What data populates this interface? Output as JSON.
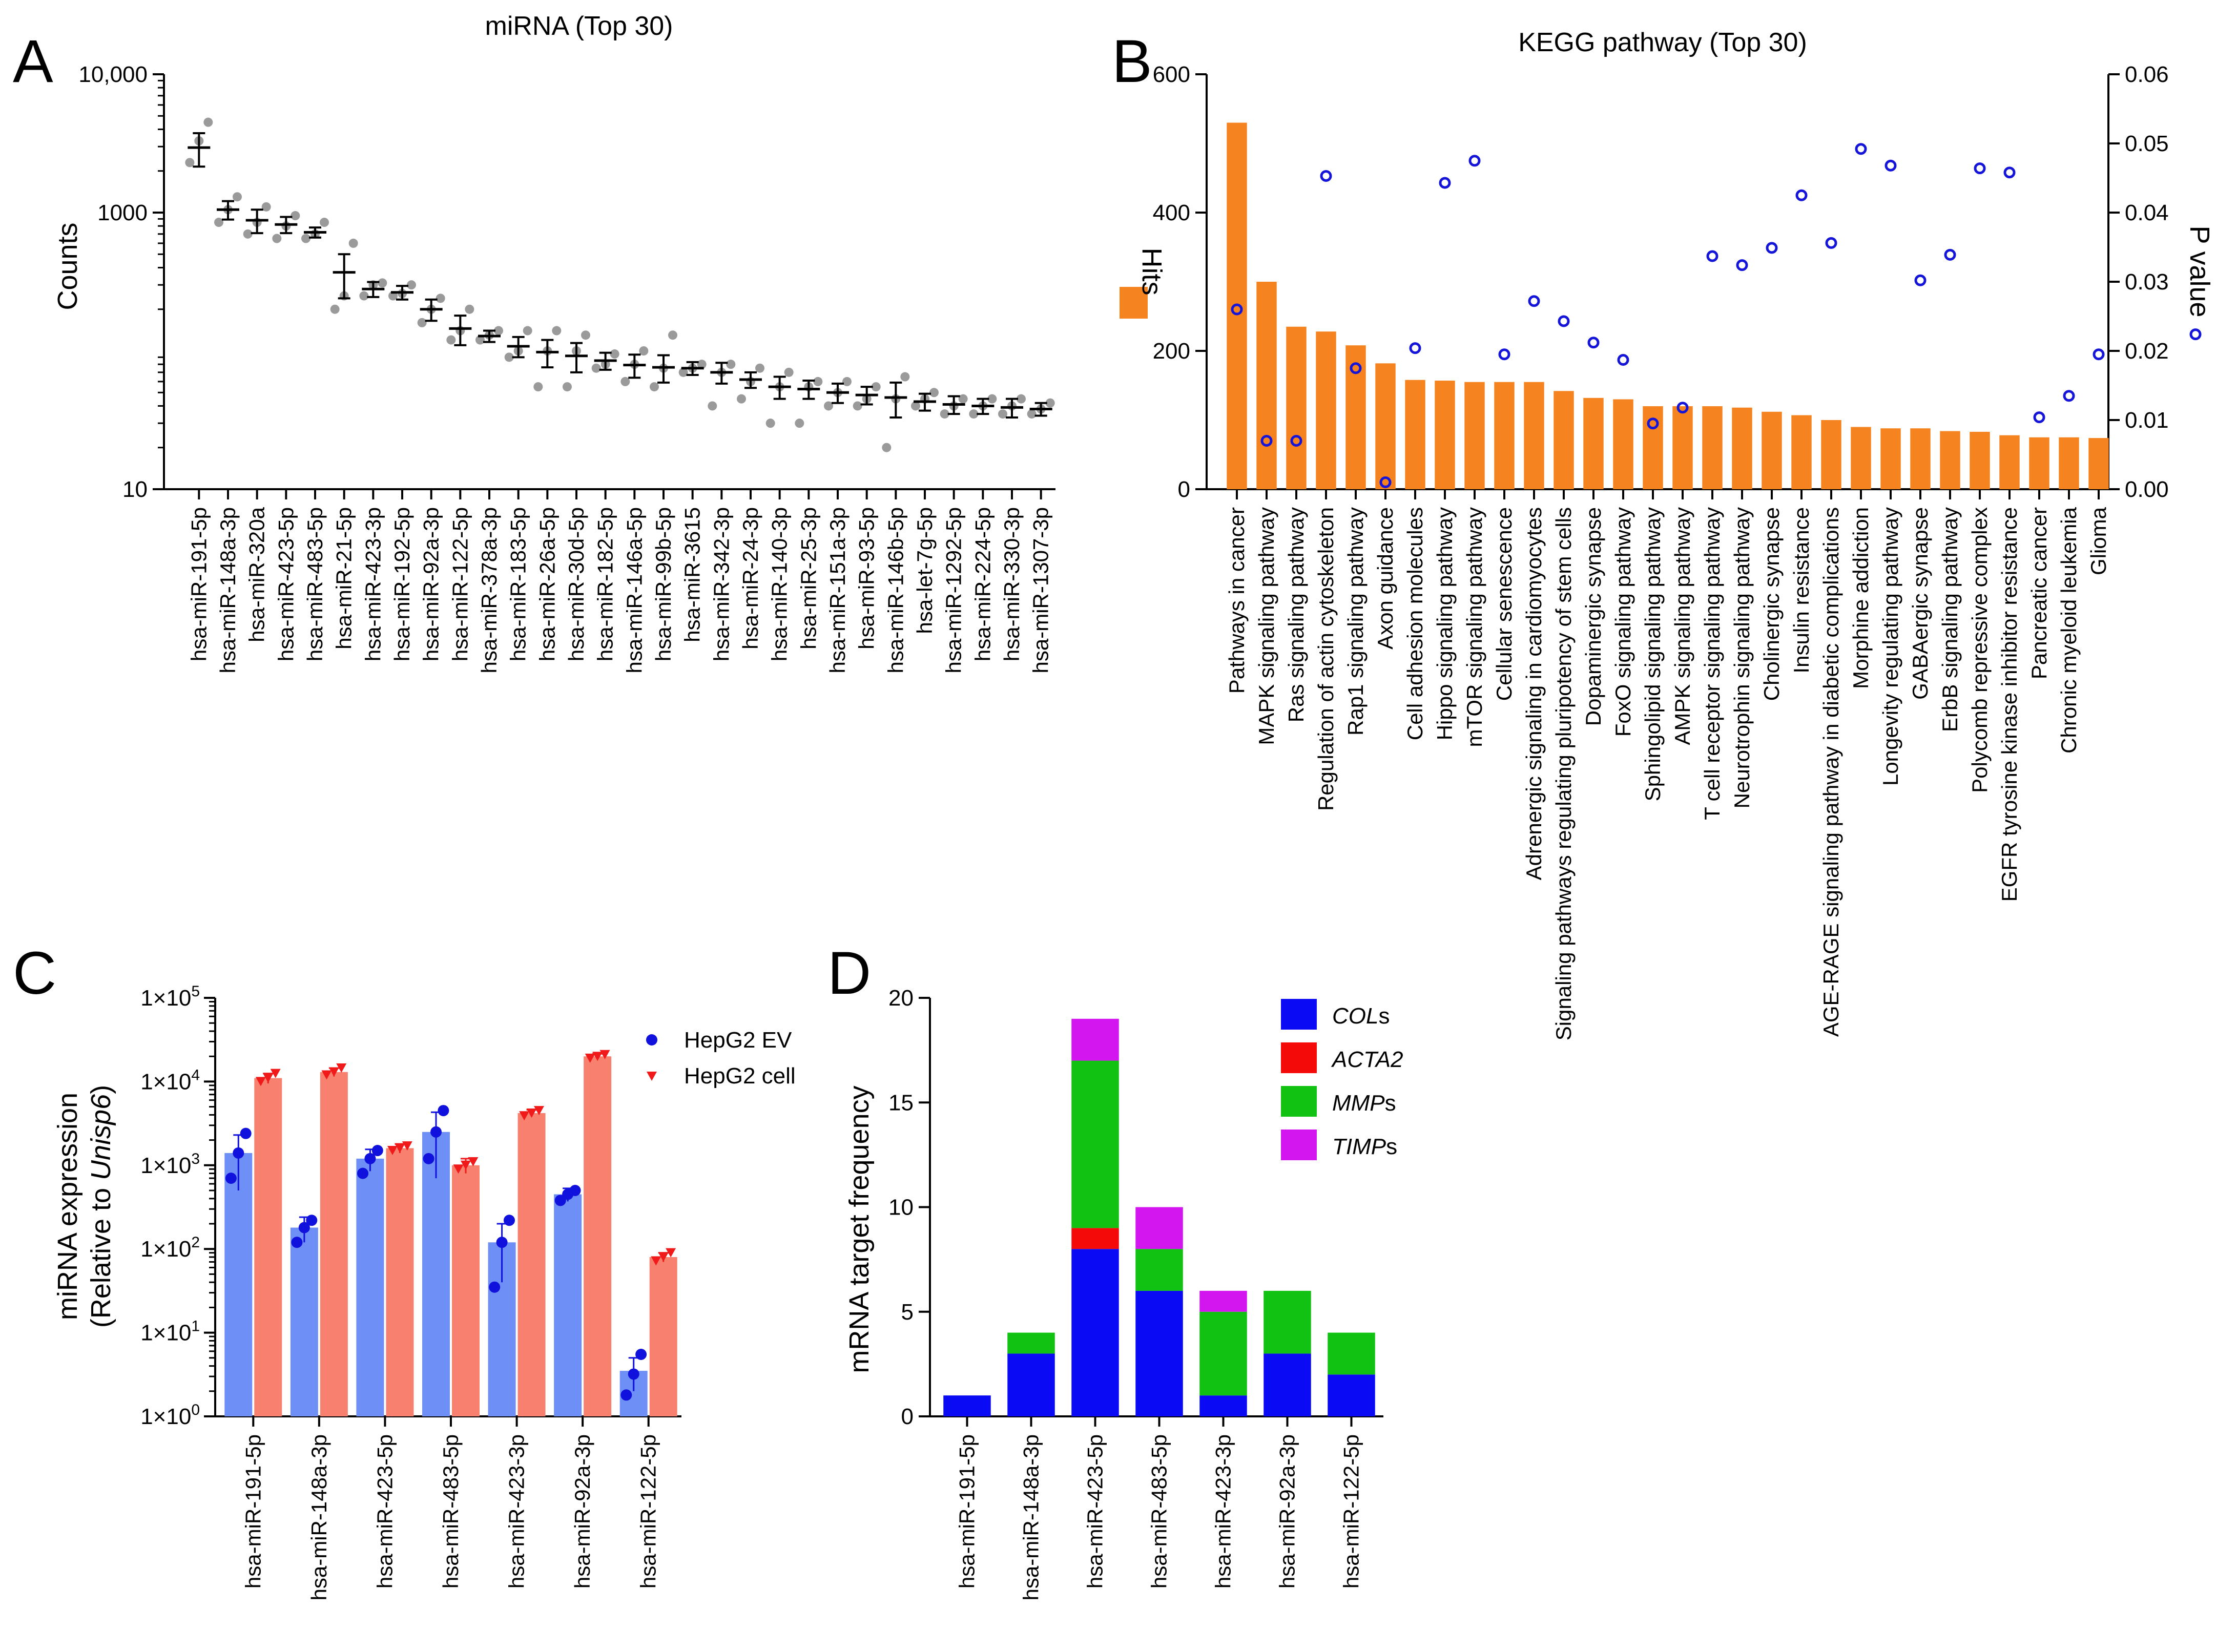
{
  "chart_data": [
    {
      "panel": "A",
      "type": "scatter",
      "title": "miRNA (Top 30)",
      "xlabel": "",
      "ylabel": "Counts",
      "yscale": "log",
      "ylim": [
        10,
        10000
      ],
      "yticks": [
        10,
        1000,
        10000
      ],
      "ytick_labels": [
        "10",
        "1000",
        "10,000"
      ],
      "categories": [
        "hsa-miR-191-5p",
        "hsa-miR-148a-3p",
        "hsa-miR-320a",
        "hsa-miR-423-5p",
        "hsa-miR-483-5p",
        "hsa-miR-21-5p",
        "hsa-miR-423-3p",
        "hsa-miR-192-5p",
        "hsa-miR-92a-3p",
        "hsa-miR-122-5p",
        "hsa-miR-378a-3p",
        "hsa-miR-183-5p",
        "hsa-miR-26a-5p",
        "hsa-miR-30d-5p",
        "hsa-miR-182-5p",
        "hsa-miR-146a-5p",
        "hsa-miR-99b-5p",
        "hsa-miR-3615",
        "hsa-miR-342-3p",
        "hsa-miR-24-3p",
        "hsa-miR-140-3p",
        "hsa-miR-25-3p",
        "hsa-miR-151a-3p",
        "hsa-miR-93-5p",
        "hsa-miR-146b-5p",
        "hsa-let-7g-5p",
        "hsa-miR-1292-5p",
        "hsa-miR-224-5p",
        "hsa-miR-330-3p",
        "hsa-miR-1307-3p"
      ],
      "means": [
        2950,
        1050,
        880,
        820,
        720,
        370,
        280,
        265,
        200,
        145,
        128,
        108,
        98,
        92,
        85,
        79,
        76,
        75,
        70,
        62,
        55,
        53,
        50,
        48,
        46,
        43,
        41,
        40,
        39,
        38
      ],
      "errors": [
        800,
        160,
        170,
        110,
        60,
        130,
        35,
        30,
        35,
        35,
        12,
        18,
        22,
        22,
        12,
        15,
        17,
        8,
        12,
        8,
        10,
        8,
        8,
        7,
        13,
        6,
        6,
        5,
        6,
        4
      ],
      "points": [
        [
          2300,
          3300,
          4500
        ],
        [
          850,
          1050,
          1300
        ],
        [
          700,
          850,
          1100
        ],
        [
          650,
          800,
          950
        ],
        [
          650,
          700,
          850
        ],
        [
          200,
          250,
          600
        ],
        [
          250,
          300,
          310
        ],
        [
          250,
          260,
          300
        ],
        [
          160,
          200,
          240
        ],
        [
          120,
          140,
          200
        ],
        [
          120,
          130,
          140
        ],
        [
          90,
          100,
          140
        ],
        [
          55,
          100,
          140
        ],
        [
          55,
          100,
          130
        ],
        [
          75,
          80,
          95
        ],
        [
          60,
          80,
          100
        ],
        [
          55,
          75,
          130
        ],
        [
          70,
          75,
          80
        ],
        [
          40,
          70,
          80
        ],
        [
          45,
          60,
          75
        ],
        [
          30,
          55,
          70
        ],
        [
          30,
          55,
          60
        ],
        [
          40,
          50,
          60
        ],
        [
          40,
          45,
          55
        ],
        [
          20,
          45,
          65
        ],
        [
          40,
          45,
          50
        ],
        [
          35,
          40,
          45
        ],
        [
          35,
          40,
          45
        ],
        [
          35,
          40,
          45
        ],
        [
          35,
          38,
          42
        ]
      ]
    },
    {
      "panel": "B",
      "type": "bar",
      "title": "KEGG pathway (Top 30)",
      "xlabel": "",
      "ylabel": "Hits",
      "ylabel_right": "P value",
      "ylim": [
        0,
        600
      ],
      "yticks": [
        0,
        200,
        400,
        600
      ],
      "ylim_right": [
        0,
        0.06
      ],
      "yticks_right": [
        "0.00",
        "0.01",
        "0.02",
        "0.03",
        "0.04",
        "0.05",
        "0.06"
      ],
      "bar_color": "#f5831f",
      "point_color": "#1515d9",
      "categories": [
        "Pathways in cancer",
        "MAPK signaling pathway",
        "Ras signaling pathway",
        "Regulation of actin cytoskeleton",
        "Rap1 signaling pathway",
        "Axon guidance",
        "Cell adhesion molecules",
        "Hippo signaling pathway",
        "mTOR signaling pathway",
        "Cellular senescence",
        "Adrenergic signaling in cardiomyocytes",
        "Signaling pathways regulating pluripotency of stem cells",
        "Dopaminergic synapse",
        "FoxO signaling pathway",
        "Sphingolipid signaling pathway",
        "AMPK signaling pathway",
        "T cell receptor signaling pathway",
        "Neurotrophin signaling pathway",
        "Cholinergic synapse",
        "Insulin resistance",
        "AGE-RAGE signaling pathway in diabetic complications",
        "Morphine addiction",
        "Longevity regulating pathway",
        "GABAergic synapse",
        "ErbB signaling pathway",
        "Polycomb repressive complex",
        "EGFR tyrosine kinase inhibitor resistance",
        "Pancreatic cancer",
        "Chronic myeloid leukemia",
        "Glioma"
      ],
      "series": [
        {
          "name": "Hits",
          "values": [
            530,
            300,
            235,
            228,
            208,
            182,
            158,
            157,
            155,
            155,
            155,
            142,
            132,
            130,
            120,
            120,
            120,
            118,
            112,
            107,
            100,
            90,
            88,
            88,
            84,
            83,
            78,
            75,
            75,
            74
          ]
        },
        {
          "name": "P value",
          "values": [
            0.026,
            0.007,
            0.007,
            0.0453,
            0.0175,
            0.001,
            0.0204,
            0.0443,
            0.0475,
            0.0195,
            0.0272,
            0.0243,
            0.0212,
            0.0187,
            0.0095,
            0.0118,
            0.0337,
            0.0324,
            0.0349,
            0.0425,
            0.0356,
            0.0492,
            0.0468,
            0.0302,
            0.0339,
            0.0464,
            0.0458,
            0.0104,
            0.0135,
            0.0195
          ]
        }
      ],
      "extra_pvalue_point": 0.0224
    },
    {
      "panel": "C",
      "type": "bar",
      "title": "",
      "xlabel": "",
      "ylabel_lines": [
        "miRNA expression",
        "(Relative to ",
        "Unisp6",
        ")"
      ],
      "yscale": "log",
      "ylim": [
        1,
        100000
      ],
      "ytick_bases": [
        "1×10",
        "1×10",
        "1×10",
        "1×10",
        "1×10",
        "1×10"
      ],
      "ytick_exps": [
        "0",
        "1",
        "2",
        "3",
        "4",
        "5"
      ],
      "categories": [
        "hsa-miR-191-5p",
        "hsa-miR-148a-3p",
        "hsa-miR-423-5p",
        "hsa-miR-483-5p",
        "hsa-miR-423-3p",
        "hsa-miR-92a-3p",
        "hsa-miR-122-5p"
      ],
      "series": [
        {
          "name": "HepG2 EV",
          "color": "#6e8ff5",
          "point_color": "#1111dd",
          "values": [
            1400,
            180,
            1200,
            2500,
            120,
            450,
            3.5
          ],
          "errors": [
            900,
            60,
            350,
            1800,
            80,
            80,
            1.5
          ],
          "points": [
            [
              700,
              1400,
              2400
            ],
            [
              120,
              180,
              220
            ],
            [
              800,
              1200,
              1500
            ],
            [
              1200,
              2500,
              4500
            ],
            [
              35,
              120,
              220
            ],
            [
              380,
              450,
              500
            ],
            [
              1.8,
              3.2,
              5.5
            ]
          ]
        },
        {
          "name": "HepG2 cell",
          "color": "#f7806e",
          "point_color": "#f01a1a",
          "values": [
            11000,
            13000,
            1600,
            1000,
            4200,
            20000,
            80
          ],
          "errors": [
            1500,
            1500,
            200,
            200,
            400,
            1500,
            10
          ],
          "points": [
            [
              10000,
              11000,
              12500
            ],
            [
              12000,
              13000,
              14500
            ],
            [
              1500,
              1600,
              1700
            ],
            [
              900,
              1000,
              1100
            ],
            [
              3900,
              4200,
              4500
            ],
            [
              19000,
              20000,
              21000
            ],
            [
              72,
              80,
              90
            ]
          ]
        }
      ]
    },
    {
      "panel": "D",
      "type": "bar",
      "stacked": true,
      "title": "",
      "xlabel": "",
      "ylabel": "mRNA target frequency",
      "ylim": [
        0,
        20
      ],
      "yticks": [
        0,
        5,
        10,
        15,
        20
      ],
      "categories": [
        "hsa-miR-191-5p",
        "hsa-miR-148a-3p",
        "hsa-miR-423-5p",
        "hsa-miR-483-5p",
        "hsa-miR-423-3p",
        "hsa-miR-92a-3p",
        "hsa-miR-122-5p"
      ],
      "series": [
        {
          "name": "COL",
          "suffix": "s",
          "color": "#0a0af5",
          "values": [
            1,
            3,
            8,
            6,
            1,
            3,
            2
          ]
        },
        {
          "name": "ACTA2",
          "suffix": "",
          "color": "#f50a0a",
          "values": [
            0,
            0,
            1,
            0,
            0,
            0,
            0
          ]
        },
        {
          "name": "MMP",
          "suffix": "s",
          "color": "#12c212",
          "values": [
            0,
            1,
            8,
            2,
            4,
            3,
            2
          ]
        },
        {
          "name": "TIMP",
          "suffix": "s",
          "color": "#d316f0",
          "values": [
            0,
            0,
            2,
            2,
            1,
            0,
            0
          ]
        }
      ]
    }
  ]
}
